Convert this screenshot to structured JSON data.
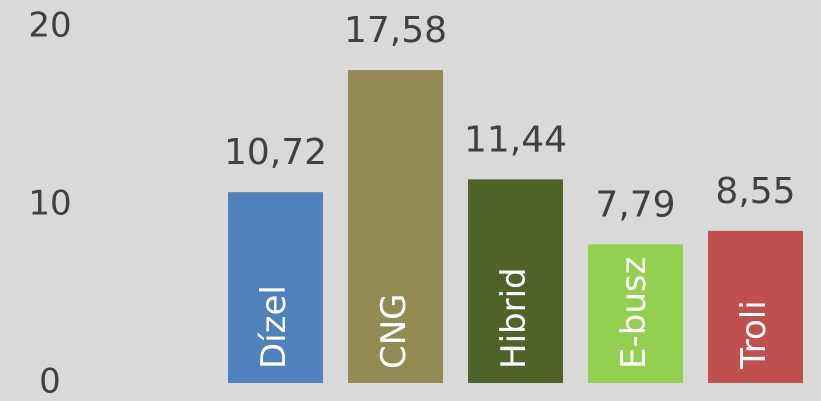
{
  "chart_data": {
    "type": "bar",
    "categories": [
      "Dízel",
      "CNG",
      "Hibrid",
      "E-busz",
      "Troli"
    ],
    "values": [
      10.72,
      17.58,
      11.44,
      7.79,
      8.55
    ],
    "value_labels": [
      "10,72",
      "17,58",
      "11,44",
      "7,79",
      "8,55"
    ],
    "colors": [
      "#4f81bd",
      "#948a54",
      "#4f6228",
      "#92d050",
      "#c0504d"
    ],
    "ylim": [
      0,
      20
    ],
    "yticks": [
      0,
      10,
      20
    ],
    "grid": false
  }
}
